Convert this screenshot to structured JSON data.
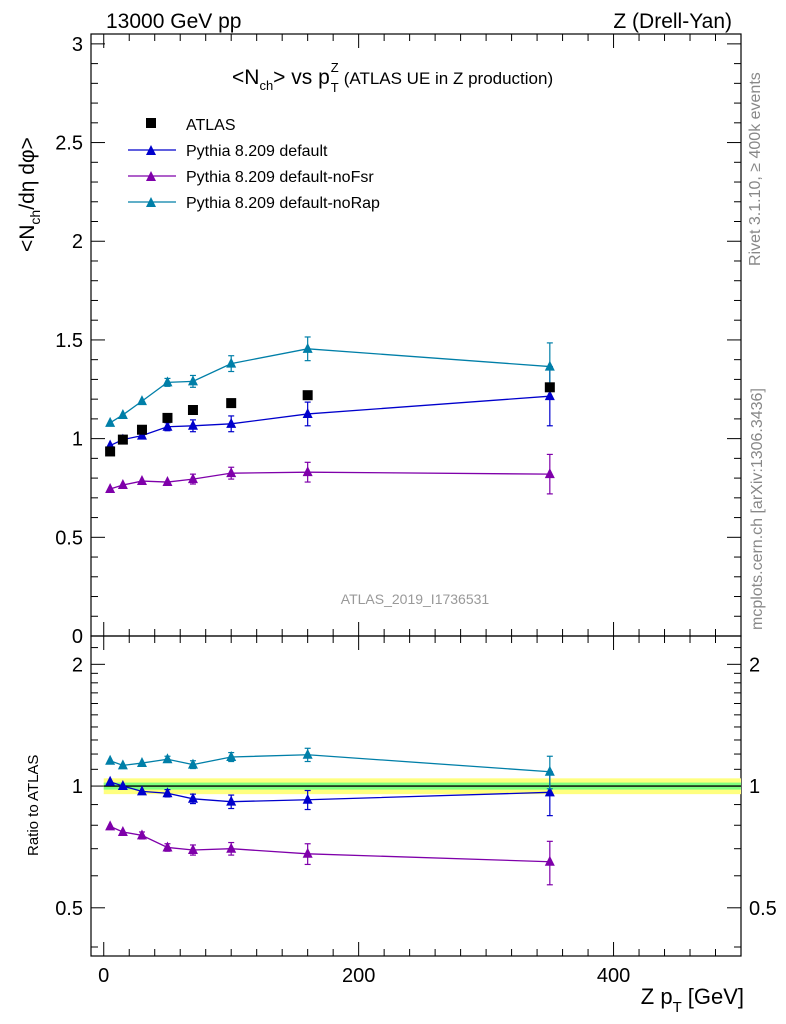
{
  "header": {
    "left": "13000 GeV pp",
    "right": "Z (Drell-Yan)"
  },
  "side_labels": {
    "rivet": "Rivet 3.1.10, ≥ 400k events",
    "mcplots": "mcplots.cern.ch [arXiv:1306.3436]"
  },
  "watermark": "ATLAS_2019_I1736531",
  "colors": {
    "atlas": "#000000",
    "default": "#0000cc",
    "noFsr": "#7f00aa",
    "noRap": "#007fa8",
    "band_inner": "#7fff7f",
    "band_outer": "#ffff7f"
  },
  "chart_data": [
    {
      "type": "scatter",
      "title_parts": {
        "n": "N",
        "ch": "ch",
        "vs": "> vs p",
        "sup": "Z",
        "sub": "T",
        "rest": "(ATLAS UE in Z production)"
      },
      "ylabel_parts": {
        "a": "<N",
        "b": "ch",
        "c": "/dη dφ>"
      },
      "xlim": [
        -10,
        500
      ],
      "ylim": [
        0,
        3.05
      ],
      "yticks": [
        0,
        0.5,
        1,
        1.5,
        2,
        2.5,
        3
      ],
      "yticklabels": [
        "0",
        "0.5",
        "1",
        "1.5",
        "2",
        "2.5",
        "3"
      ],
      "legend_placement": "top-left",
      "x": [
        5,
        15,
        30,
        50,
        70,
        100,
        160,
        350
      ],
      "series": [
        {
          "key": "atlas",
          "name": "ATLAS",
          "marker": "square",
          "line": false,
          "values": [
            0.935,
            0.995,
            1.045,
            1.105,
            1.145,
            1.18,
            1.22,
            1.26
          ],
          "errors": [
            0.01,
            0.01,
            0.01,
            0.01,
            0.01,
            0.01,
            0.01,
            0.02
          ]
        },
        {
          "key": "default",
          "name": "Pythia 8.209 default",
          "marker": "triangle",
          "line": true,
          "values": [
            0.965,
            0.995,
            1.015,
            1.06,
            1.065,
            1.075,
            1.125,
            1.215
          ],
          "errors": [
            0.01,
            0.01,
            0.015,
            0.02,
            0.03,
            0.04,
            0.06,
            0.15
          ]
        },
        {
          "key": "noFsr",
          "name": "Pythia 8.209 default-noFsr",
          "marker": "triangle",
          "line": true,
          "values": [
            0.745,
            0.765,
            0.785,
            0.78,
            0.795,
            0.825,
            0.83,
            0.82
          ],
          "errors": [
            0.01,
            0.01,
            0.015,
            0.015,
            0.025,
            0.03,
            0.05,
            0.1
          ]
        },
        {
          "key": "noRap",
          "name": "Pythia 8.209 default-noRap",
          "marker": "triangle",
          "line": true,
          "values": [
            1.08,
            1.12,
            1.19,
            1.285,
            1.29,
            1.38,
            1.455,
            1.365
          ],
          "errors": [
            0.01,
            0.01,
            0.015,
            0.02,
            0.03,
            0.04,
            0.06,
            0.12
          ]
        }
      ]
    },
    {
      "type": "line",
      "ylabel": "Ratio to ATLAS",
      "xlabel_parts": {
        "a": "Z p",
        "b": "T",
        "c": "[GeV]"
      },
      "log_y": true,
      "xlim": [
        -10,
        500
      ],
      "ylim": [
        0.38,
        2.35
      ],
      "xticks": [
        0,
        200,
        400
      ],
      "xticklabels": [
        "0",
        "200",
        "400"
      ],
      "yticks": [
        0.5,
        1,
        2
      ],
      "yticklabels": [
        "0.5",
        "1",
        "2"
      ],
      "reference_line": 1,
      "band_inner": [
        0.98,
        1.02
      ],
      "band_outer": [
        0.955,
        1.045
      ],
      "x": [
        5,
        15,
        30,
        50,
        70,
        100,
        160,
        350
      ],
      "series": [
        {
          "key": "default",
          "values": [
            1.025,
            1.0,
            0.97,
            0.96,
            0.93,
            0.915,
            0.925,
            0.965
          ],
          "errors": [
            0.01,
            0.01,
            0.015,
            0.02,
            0.025,
            0.035,
            0.05,
            0.12
          ]
        },
        {
          "key": "noFsr",
          "values": [
            0.795,
            0.77,
            0.755,
            0.705,
            0.695,
            0.7,
            0.68,
            0.65
          ],
          "errors": [
            0.01,
            0.01,
            0.015,
            0.015,
            0.02,
            0.025,
            0.04,
            0.08
          ]
        },
        {
          "key": "noRap",
          "values": [
            1.155,
            1.125,
            1.14,
            1.165,
            1.13,
            1.18,
            1.195,
            1.085
          ],
          "errors": [
            0.01,
            0.01,
            0.015,
            0.02,
            0.025,
            0.03,
            0.045,
            0.1
          ]
        }
      ]
    }
  ]
}
